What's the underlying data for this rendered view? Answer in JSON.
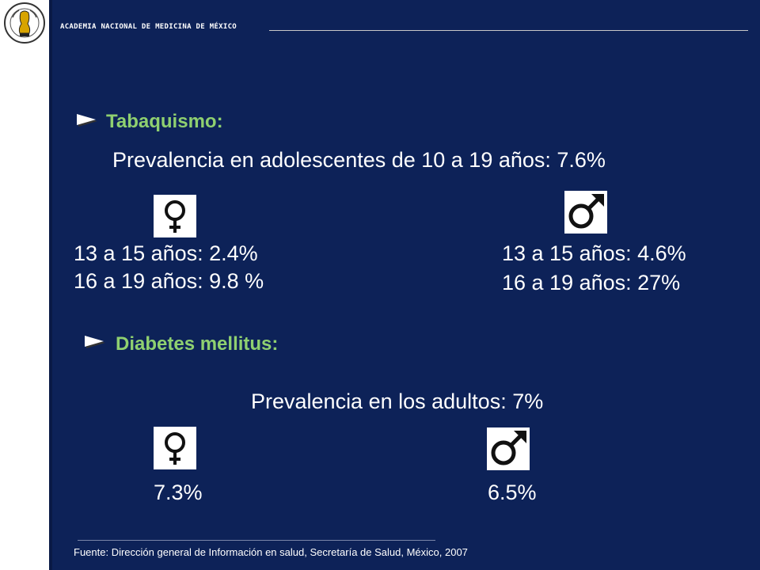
{
  "header": {
    "institution": "ACADEMIA NACIONAL DE MEDICINA DE MÉXICO"
  },
  "tabaquismo": {
    "title": "Tabaquismo:",
    "prevalence": "Prevalencia en adolescentes de 10 a 19 años: 7.6%",
    "female_line1": "13  a 15 años: 2.4%",
    "female_line2": "16 a 19 años: 9.8 %",
    "male_line1": "13 a 15 años: 4.6%",
    "male_line2": "16 a 19 años: 27%"
  },
  "diabetes": {
    "title": "Diabetes mellitus:",
    "prevalence": "Prevalencia en los adultos: 7%",
    "female_value": "7.3%",
    "male_value": "6.5%"
  },
  "footer": {
    "source": "Fuente: Dirección general de Información en salud, Secretaría de Salud, México, 2007"
  },
  "icons": {
    "female": "female-symbol-icon",
    "male": "male-symbol-icon",
    "bullet": "triangle-bullet-icon",
    "logo": "academy-seal-logo"
  },
  "colors": {
    "background": "#0d2258",
    "section_title": "#8fd070",
    "text": "#ffffff"
  }
}
